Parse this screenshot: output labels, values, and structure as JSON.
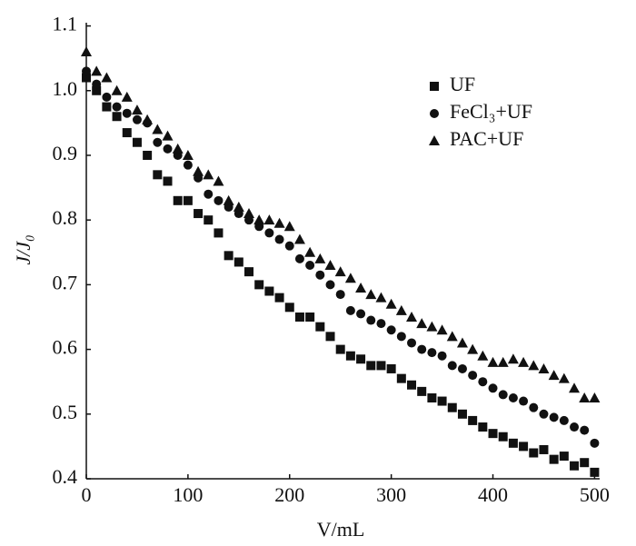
{
  "chart_data": {
    "type": "scatter",
    "x_label": "V/mL",
    "y_label": "J/J₀",
    "x": [
      0,
      10,
      20,
      30,
      40,
      50,
      60,
      70,
      80,
      90,
      100,
      110,
      120,
      130,
      140,
      150,
      160,
      170,
      180,
      190,
      200,
      210,
      220,
      230,
      240,
      250,
      260,
      270,
      280,
      290,
      300,
      310,
      320,
      330,
      340,
      350,
      360,
      370,
      380,
      390,
      400,
      410,
      420,
      430,
      440,
      450,
      460,
      470,
      480,
      490,
      500
    ],
    "series": [
      {
        "name": "UF",
        "color": "#111111",
        "marker": "square",
        "values": [
          1.02,
          1.0,
          0.975,
          0.96,
          0.935,
          0.92,
          0.9,
          0.87,
          0.86,
          0.83,
          0.83,
          0.81,
          0.8,
          0.78,
          0.745,
          0.735,
          0.72,
          0.7,
          0.69,
          0.68,
          0.665,
          0.65,
          0.65,
          0.635,
          0.62,
          0.6,
          0.59,
          0.585,
          0.575,
          0.575,
          0.57,
          0.555,
          0.545,
          0.535,
          0.525,
          0.52,
          0.51,
          0.5,
          0.49,
          0.48,
          0.47,
          0.465,
          0.455,
          0.45,
          0.44,
          0.445,
          0.43,
          0.435,
          0.42,
          0.425,
          0.41
        ]
      },
      {
        "name": "FeCl₃+UF",
        "color": "#111111",
        "marker": "circle",
        "values": [
          1.03,
          1.01,
          0.99,
          0.975,
          0.965,
          0.955,
          0.95,
          0.92,
          0.91,
          0.9,
          0.885,
          0.865,
          0.84,
          0.83,
          0.82,
          0.81,
          0.8,
          0.79,
          0.78,
          0.77,
          0.76,
          0.74,
          0.73,
          0.715,
          0.7,
          0.685,
          0.66,
          0.655,
          0.645,
          0.64,
          0.63,
          0.62,
          0.61,
          0.6,
          0.595,
          0.59,
          0.575,
          0.57,
          0.56,
          0.55,
          0.54,
          0.53,
          0.525,
          0.52,
          0.51,
          0.5,
          0.495,
          0.49,
          0.48,
          0.475,
          0.455
        ]
      },
      {
        "name": "PAC+UF",
        "color": "#111111",
        "marker": "triangle",
        "values": [
          1.06,
          1.03,
          1.02,
          1.0,
          0.99,
          0.97,
          0.955,
          0.94,
          0.93,
          0.91,
          0.9,
          0.875,
          0.87,
          0.86,
          0.83,
          0.82,
          0.81,
          0.8,
          0.8,
          0.795,
          0.79,
          0.77,
          0.75,
          0.74,
          0.73,
          0.72,
          0.71,
          0.695,
          0.685,
          0.68,
          0.67,
          0.66,
          0.65,
          0.64,
          0.635,
          0.63,
          0.62,
          0.61,
          0.6,
          0.59,
          0.58,
          0.58,
          0.585,
          0.58,
          0.575,
          0.57,
          0.56,
          0.555,
          0.54,
          0.525,
          0.525
        ]
      }
    ],
    "xlim": [
      0,
      505
    ],
    "xticks": [
      0,
      100,
      200,
      300,
      400,
      500
    ],
    "ylim": [
      0.4,
      1.105
    ],
    "yticks": [
      0.4,
      0.5,
      0.6,
      0.7,
      0.8,
      0.9,
      {
        "value": 1,
        "label": "1.0"
      },
      1.1
    ],
    "grid": false,
    "legend": "upper right"
  }
}
